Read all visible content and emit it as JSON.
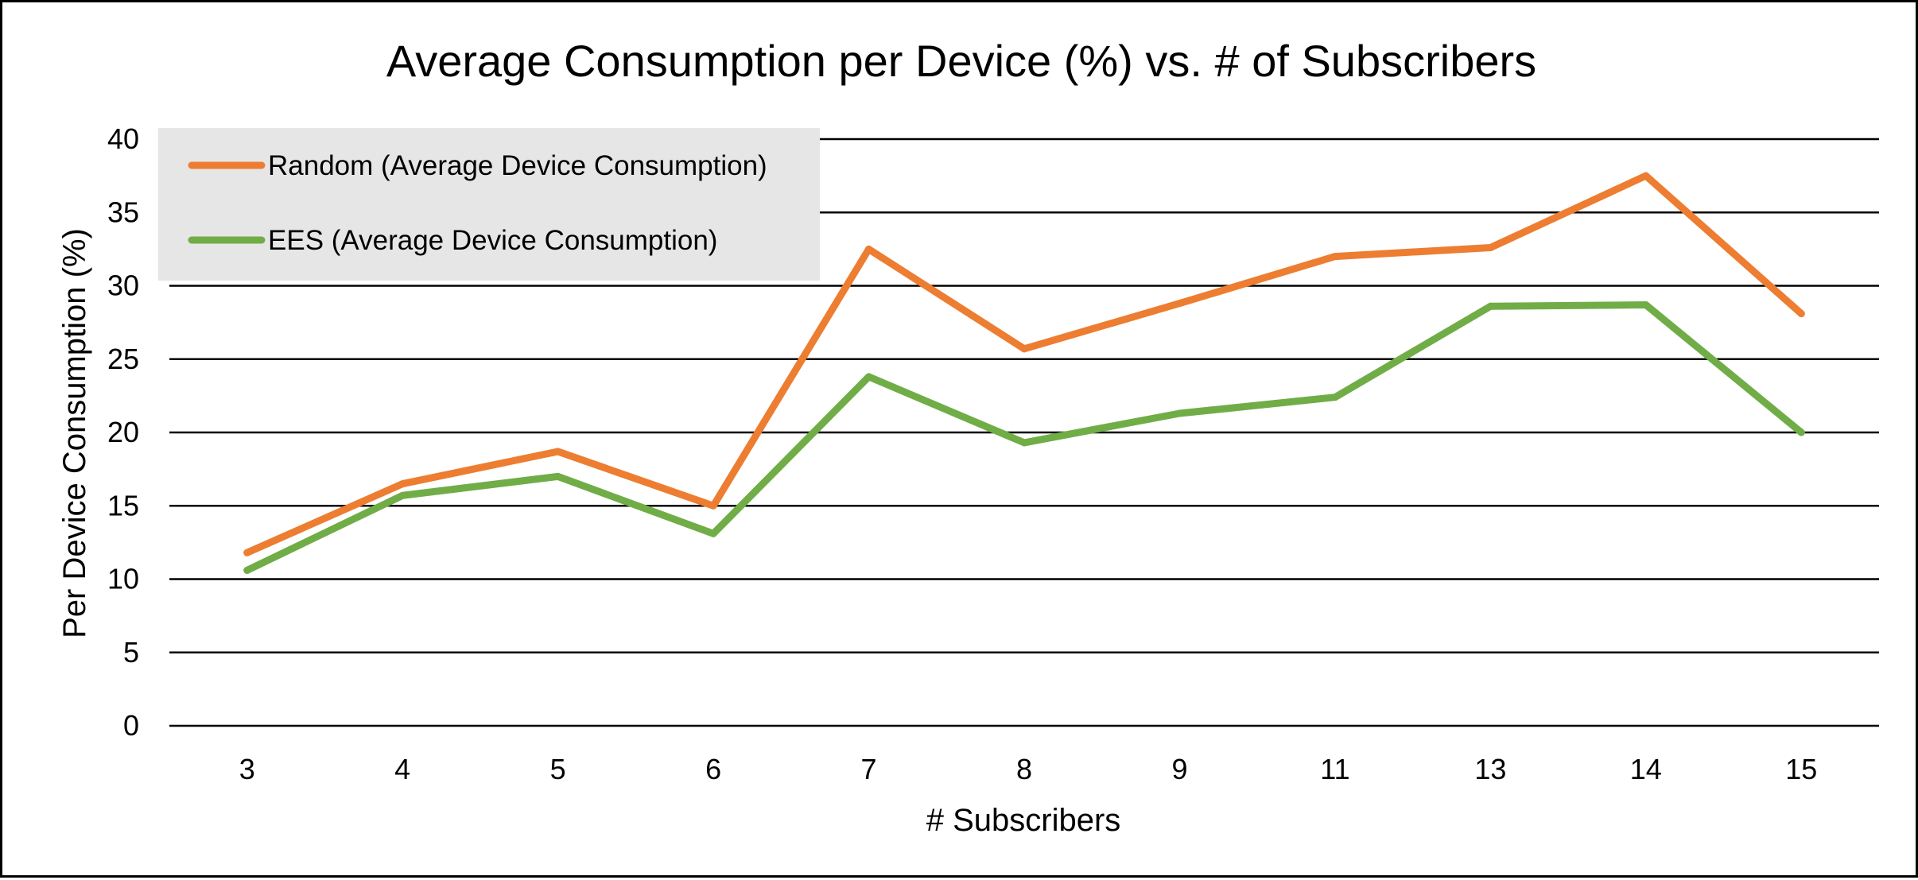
{
  "chart_data": {
    "type": "line",
    "title": "Average Consumption per Device (%) vs. # of Subscribers",
    "xlabel": "# Subscribers",
    "ylabel": "Per Device Consumption (%)",
    "categories": [
      "3",
      "4",
      "5",
      "6",
      "7",
      "8",
      "9",
      "11",
      "13",
      "14",
      "15"
    ],
    "ylim": [
      0,
      40
    ],
    "yticks": [
      "0",
      "5",
      "10",
      "15",
      "20",
      "25",
      "30",
      "35",
      "40"
    ],
    "grid": true,
    "legend_position": "top-left",
    "series": [
      {
        "name": "Random (Average Device Consumption)",
        "color": "#ED7D31",
        "values": [
          11.8,
          16.5,
          18.7,
          15.0,
          32.5,
          25.7,
          28.8,
          32.0,
          32.6,
          37.5,
          28.1
        ]
      },
      {
        "name": "EES (Average Device Consumption)",
        "color": "#70AD47",
        "values": [
          10.6,
          15.7,
          17.0,
          13.1,
          23.8,
          19.3,
          21.3,
          22.4,
          28.6,
          28.7,
          20.0
        ]
      }
    ],
    "legend_background": "#E7E6E6",
    "grid_color": "#000000"
  }
}
